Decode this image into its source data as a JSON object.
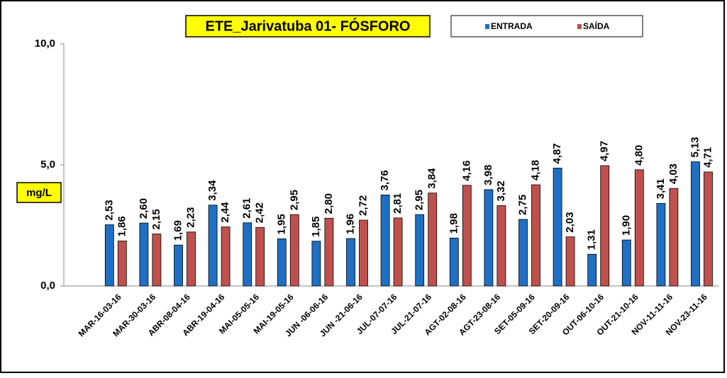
{
  "chart_data": {
    "type": "bar",
    "title": "ETE_Jarivatuba 01- FÓSFORO",
    "y_label": "mg/L",
    "categories": [
      "MAR-16-03-16",
      "MAR-30-03-16",
      "ABR-08-04-16",
      "ABR-19-04-16",
      "MAI-05-05-16",
      "MAI-19-05-16",
      "JUN -06-06-16",
      "JUN -21-06-16",
      "JUL-07-07-16",
      "JUL-21-07-16",
      "AGT-02-08-16",
      "AGT-23-08-16",
      "SET-05-09-16",
      "SET-20-09-16",
      "OUT-06-10-16",
      "OUT-21-10-16",
      "NOV-11-11-16",
      "NOV-23-11-16"
    ],
    "series": [
      {
        "name": "ENTRADA",
        "color": "#1f6fc5",
        "values": [
          2.53,
          2.6,
          1.69,
          3.34,
          2.61,
          1.95,
          1.85,
          1.96,
          3.76,
          2.95,
          1.98,
          3.98,
          2.75,
          4.87,
          1.31,
          1.9,
          3.41,
          5.13
        ],
        "value_labels": [
          "2,53",
          "2,60",
          "1,69",
          "3,34",
          "2,61",
          "1,95",
          "1,85",
          "1,96",
          "3,76",
          "2,95",
          "1,98",
          "3,98",
          "2,75",
          "4,87",
          "1,31",
          "1,90",
          "3,41",
          "5,13"
        ]
      },
      {
        "name": "SAÍDA",
        "color": "#c0504d",
        "values": [
          1.86,
          2.15,
          2.23,
          2.44,
          2.42,
          2.95,
          2.8,
          2.72,
          2.81,
          3.84,
          4.16,
          3.32,
          4.18,
          2.03,
          4.97,
          4.8,
          4.03,
          4.71
        ],
        "value_labels": [
          "1,86",
          "2,15",
          "2,23",
          "2,44",
          "2,42",
          "2,95",
          "2,80",
          "2,72",
          "2,81",
          "3,84",
          "4,16",
          "3,32",
          "4,18",
          "2,03",
          "4,97",
          "4,80",
          "4,03",
          "4,71"
        ]
      }
    ],
    "ylim": [
      0,
      10
    ],
    "yticks": [
      {
        "value": 0,
        "label": "0,0"
      },
      {
        "value": 5,
        "label": "5,0"
      },
      {
        "value": 10,
        "label": "10,0"
      }
    ],
    "legend": "top-right"
  }
}
